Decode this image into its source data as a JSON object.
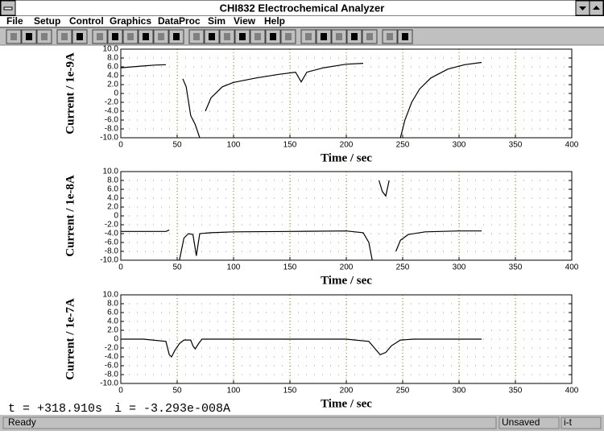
{
  "window": {
    "title": "CHI832 Electrochemical Analyzer"
  },
  "menu": {
    "items": [
      "File",
      "Setup",
      "Control",
      "Graphics",
      "DataProc",
      "Sim",
      "View",
      "Help"
    ]
  },
  "chart_data": [
    {
      "type": "line",
      "xlabel": "Time / sec",
      "ylabel": "Current / 1e-9A",
      "color": "#000000",
      "grid": true,
      "xlim": [
        0,
        400
      ],
      "xticks": [
        0,
        50,
        100,
        150,
        200,
        250,
        300,
        350,
        400
      ],
      "ylim": [
        -10,
        10
      ],
      "yticks": [
        {
          "value": 10,
          "label": "10.0"
        },
        {
          "value": 8,
          "label": "8.0"
        },
        {
          "value": 6,
          "label": "6.0"
        },
        {
          "value": 4,
          "label": "4.0"
        },
        {
          "value": 2,
          "label": "2.0"
        },
        0,
        {
          "value": -2,
          "label": "-2.0"
        },
        {
          "value": -4,
          "label": "-4.0"
        },
        {
          "value": -6,
          "label": "-6.0"
        },
        {
          "value": -8,
          "label": "-8.0"
        },
        {
          "value": -10,
          "label": "-10.0"
        }
      ],
      "x": [
        0,
        10,
        20,
        30,
        40,
        52,
        55,
        58,
        62,
        66,
        70,
        72,
        75,
        80,
        90,
        100,
        120,
        140,
        155,
        160,
        165,
        180,
        200,
        215,
        218,
        248,
        252,
        258,
        265,
        275,
        290,
        305,
        320
      ],
      "values": [
        5.8,
        6.0,
        6.2,
        6.4,
        6.5,
        null,
        3.3,
        1.5,
        -5,
        -7,
        -10,
        null,
        -4,
        -1,
        1.5,
        2.5,
        3.5,
        4.3,
        4.8,
        2.6,
        4.8,
        5.8,
        6.6,
        6.8,
        null,
        -10,
        -6,
        -2,
        1,
        3.5,
        5.5,
        6.5,
        7.0
      ]
    },
    {
      "type": "line",
      "xlabel": "Time / sec",
      "ylabel": "Current / 1e-8A",
      "color": "#000000",
      "grid": true,
      "xlim": [
        0,
        400
      ],
      "xticks": [
        0,
        50,
        100,
        150,
        200,
        250,
        300,
        350,
        400
      ],
      "ylim": [
        -10,
        10
      ],
      "yticks": [
        {
          "value": 10,
          "label": "10.0"
        },
        {
          "value": 8,
          "label": "8.0"
        },
        {
          "value": 6,
          "label": "6.0"
        },
        {
          "value": 4,
          "label": "4.0"
        },
        {
          "value": 2,
          "label": "2.0"
        },
        0,
        {
          "value": -2,
          "label": "-2.0"
        },
        {
          "value": -4,
          "label": "-4.0"
        },
        {
          "value": -6,
          "label": "-6.0"
        },
        {
          "value": -8,
          "label": "-8.0"
        },
        {
          "value": -10,
          "label": "-10.0"
        }
      ],
      "x": [
        0,
        20,
        40,
        43,
        46,
        52,
        56,
        60,
        64,
        67,
        70,
        80,
        100,
        150,
        200,
        215,
        220,
        223,
        226,
        229,
        232,
        235,
        238,
        241,
        244,
        248,
        255,
        270,
        300,
        320
      ],
      "values": [
        -3.5,
        -3.5,
        -3.5,
        -3.2,
        null,
        -10,
        -5,
        -4,
        -4.2,
        -9,
        -4,
        -3.8,
        -3.6,
        -3.5,
        -3.4,
        -3.8,
        -6,
        -10,
        null,
        8,
        5.5,
        4.5,
        8,
        null,
        -8,
        -5.5,
        -4.2,
        -3.6,
        -3.4,
        -3.4
      ]
    },
    {
      "type": "line",
      "xlabel": "Time / sec",
      "ylabel": "Current / 1e-7A",
      "color": "#000000",
      "grid": true,
      "xlim": [
        0,
        400
      ],
      "xticks": [
        0,
        50,
        100,
        150,
        200,
        250,
        300,
        350,
        400
      ],
      "ylim": [
        -10,
        10
      ],
      "yticks": [
        {
          "value": 10,
          "label": "10.0"
        },
        {
          "value": 8,
          "label": "8.0"
        },
        {
          "value": 6,
          "label": "6.0"
        },
        {
          "value": 4,
          "label": "4.0"
        },
        {
          "value": 2,
          "label": "2.0"
        },
        0,
        {
          "value": -2,
          "label": "-2.0"
        },
        {
          "value": -4,
          "label": "-4.0"
        },
        {
          "value": -6,
          "label": "-6.0"
        },
        {
          "value": -8,
          "label": "-8.0"
        },
        {
          "value": -10,
          "label": "-10.0"
        }
      ],
      "x": [
        0,
        20,
        40,
        43,
        45,
        48,
        52,
        56,
        62,
        64,
        66,
        69,
        72,
        100,
        150,
        200,
        220,
        225,
        230,
        235,
        240,
        248,
        260,
        290,
        320
      ],
      "values": [
        0,
        0,
        -0.5,
        -3.5,
        -4,
        -2.5,
        -1,
        -0.2,
        -0.2,
        -1.5,
        -2.2,
        -1,
        0,
        0,
        0,
        0,
        -0.5,
        -2,
        -3.5,
        -3,
        -1.5,
        -0.2,
        0,
        0,
        0
      ]
    }
  ],
  "cursor": {
    "t": "t = +318.910s",
    "i": "i = -3.293e-008A"
  },
  "status": {
    "message": "Ready",
    "saved": "Unsaved",
    "mode": "i-t"
  }
}
